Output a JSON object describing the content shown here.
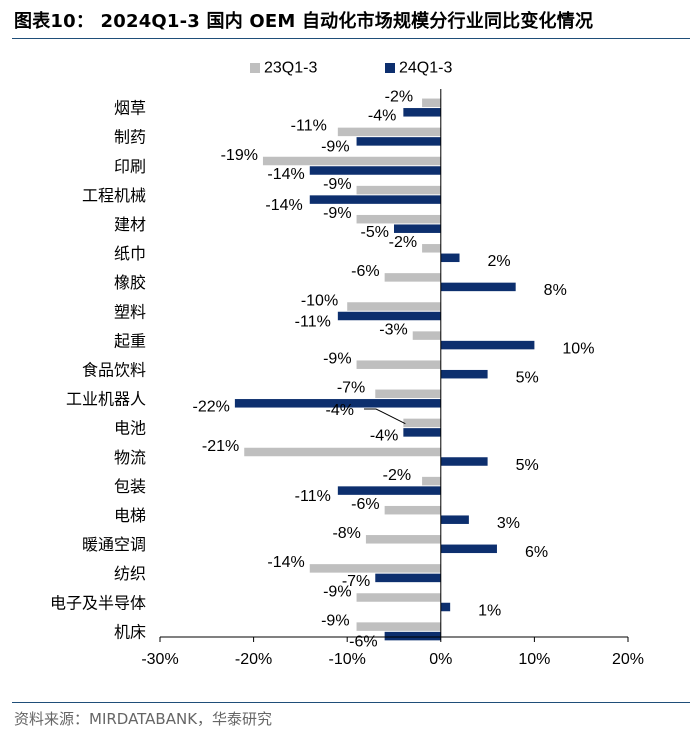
{
  "title": "图表10： 2024Q1-3 国内 OEM 自动化市场规模分行业同比变化情况",
  "footer": "资料来源：MIRDATABANK，华泰研究",
  "chart_data": {
    "type": "bar",
    "orientation": "horizontal",
    "categories": [
      "烟草",
      "制药",
      "印刷",
      "工程机械",
      "建材",
      "纸巾",
      "橡胶",
      "塑料",
      "起重",
      "食品饮料",
      "工业机器人",
      "电池",
      "物流",
      "包装",
      "电梯",
      "暖通空调",
      "纺织",
      "电子及半导体",
      "机床"
    ],
    "series": [
      {
        "name": "23Q1-3",
        "color": "#bfbfbf",
        "values": [
          -2,
          -11,
          -19,
          -9,
          -9,
          -2,
          -6,
          -10,
          -3,
          -9,
          -7,
          -4,
          -21,
          -2,
          -6,
          -8,
          -14,
          -9,
          -9
        ],
        "labels": [
          "-2%",
          "-11%",
          "-19%",
          "-9%",
          "-9%",
          "-2%",
          "-6%",
          "-10%",
          "-3%",
          "-9%",
          "-7%",
          "-4%",
          "-21%",
          "-2%",
          "-6%",
          "-8%",
          "-14%",
          "-9%",
          "-9%"
        ]
      },
      {
        "name": "24Q1-3",
        "color": "#0d2f6e",
        "values": [
          -4,
          -9,
          -14,
          -14,
          -5,
          2,
          8,
          -11,
          10,
          5,
          -22,
          -4,
          5,
          -11,
          3,
          6,
          -7,
          1,
          -6
        ],
        "labels": [
          "-4%",
          "-9%",
          "-14%",
          "-14%",
          "-5%",
          "2%",
          "8%",
          "-11%",
          "10%",
          "5%",
          "-22%",
          "-4%",
          "5%",
          "-11%",
          "3%",
          "6%",
          "-7%",
          "1%",
          "-6%"
        ]
      }
    ],
    "xlim": [
      -30,
      20
    ],
    "xticks": [
      -30,
      -20,
      -10,
      0,
      10,
      20
    ],
    "xtick_labels": [
      "-30%",
      "-20%",
      "-10%",
      "0%",
      "10%",
      "20%"
    ],
    "legend_position": "top",
    "grid": false
  }
}
